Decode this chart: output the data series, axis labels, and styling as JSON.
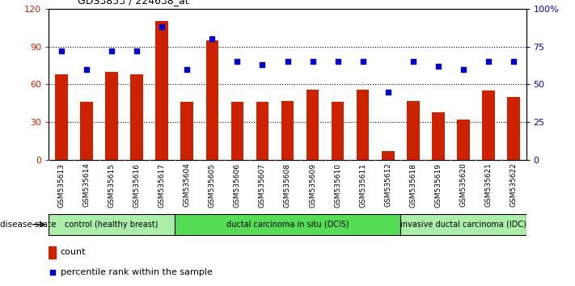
{
  "title": "GDS3853 / 224638_at",
  "samples": [
    "GSM535613",
    "GSM535614",
    "GSM535615",
    "GSM535616",
    "GSM535617",
    "GSM535604",
    "GSM535605",
    "GSM535606",
    "GSM535607",
    "GSM535608",
    "GSM535609",
    "GSM535610",
    "GSM535611",
    "GSM535612",
    "GSM535618",
    "GSM535619",
    "GSM535620",
    "GSM535621",
    "GSM535622"
  ],
  "counts": [
    68,
    46,
    70,
    68,
    110,
    46,
    95,
    46,
    46,
    47,
    56,
    46,
    56,
    7,
    47,
    38,
    32,
    55,
    50
  ],
  "percentiles": [
    72,
    60,
    72,
    72,
    88,
    60,
    80,
    65,
    63,
    65,
    65,
    65,
    65,
    45,
    65,
    62,
    60,
    65,
    65
  ],
  "ylim_left": [
    0,
    120
  ],
  "ylim_right": [
    0,
    100
  ],
  "yticks_left": [
    0,
    30,
    60,
    90,
    120
  ],
  "yticks_right": [
    0,
    25,
    50,
    75,
    100
  ],
  "ytick_labels_right": [
    "0",
    "25",
    "50",
    "75",
    "100%"
  ],
  "bar_color": "#cc2200",
  "dot_color": "#0000cc",
  "groups": [
    {
      "label": "control (healthy breast)",
      "start": 0,
      "end": 5,
      "color": "#aaeeaa"
    },
    {
      "label": "ductal carcinoma in situ (DCIS)",
      "start": 5,
      "end": 14,
      "color": "#55dd55"
    },
    {
      "label": "invasive ductal carcinoma (IDC)",
      "start": 14,
      "end": 19,
      "color": "#aaeeaa"
    }
  ],
  "disease_state_label": "disease state",
  "legend_count_label": "count",
  "legend_percentile_label": "percentile rank within the sample",
  "xtick_bg_color": "#cccccc",
  "group_border_color": "#000000"
}
